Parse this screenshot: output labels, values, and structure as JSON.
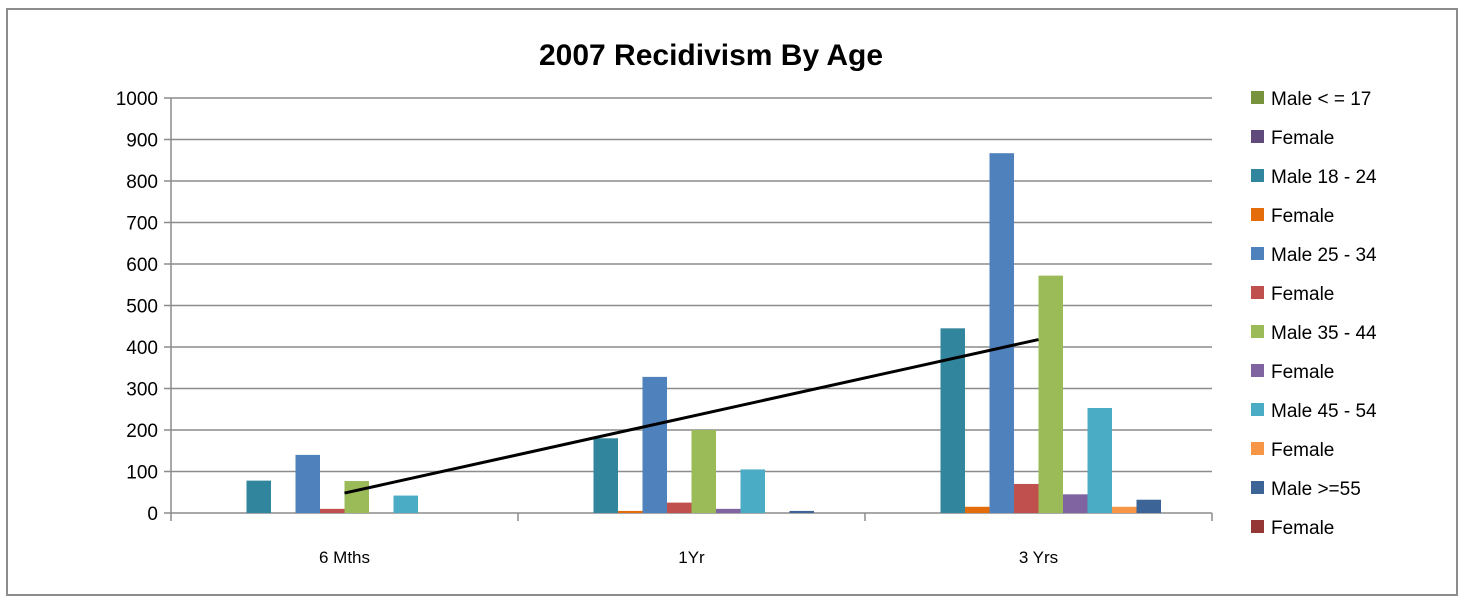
{
  "chart_data": {
    "type": "bar",
    "title": "2007 Recidivism By Age",
    "xlabel": "",
    "ylabel": "",
    "categories": [
      "6 Mths",
      "1Yr",
      "3 Yrs"
    ],
    "ylim": [
      0,
      1000
    ],
    "yticks": [
      0,
      100,
      200,
      300,
      400,
      500,
      600,
      700,
      800,
      900,
      1000
    ],
    "grid": true,
    "legend_position": "right",
    "series": [
      {
        "name": "Male < = 17",
        "color": "#77933c",
        "values": [
          0,
          0,
          0
        ]
      },
      {
        "name": "Female",
        "color": "#604a7b",
        "values": [
          0,
          0,
          0
        ]
      },
      {
        "name": "Male 18 - 24",
        "color": "#31859c",
        "values": [
          78,
          180,
          445
        ]
      },
      {
        "name": "Female",
        "color": "#e46c0a",
        "values": [
          0,
          5,
          15
        ]
      },
      {
        "name": "Male 25 - 34",
        "color": "#4f81bd",
        "values": [
          140,
          328,
          867
        ]
      },
      {
        "name": "Female",
        "color": "#c0504d",
        "values": [
          10,
          25,
          70
        ]
      },
      {
        "name": "Male 35 - 44",
        "color": "#9bbb59",
        "values": [
          77,
          200,
          572
        ]
      },
      {
        "name": "Female",
        "color": "#8064a2",
        "values": [
          0,
          10,
          45
        ]
      },
      {
        "name": "Male 45 - 54",
        "color": "#4bacc6",
        "values": [
          42,
          105,
          253
        ]
      },
      {
        "name": "Female",
        "color": "#f79646",
        "values": [
          0,
          0,
          15
        ]
      },
      {
        "name": "Male >=55",
        "color": "#3c6496",
        "values": [
          0,
          5,
          32
        ]
      },
      {
        "name": "Female",
        "color": "#953735",
        "values": [
          0,
          0,
          0
        ]
      }
    ],
    "trendline": {
      "color": "#000000",
      "x": [
        "6 Mths",
        "3 Yrs"
      ],
      "y": [
        48,
        418
      ]
    }
  }
}
